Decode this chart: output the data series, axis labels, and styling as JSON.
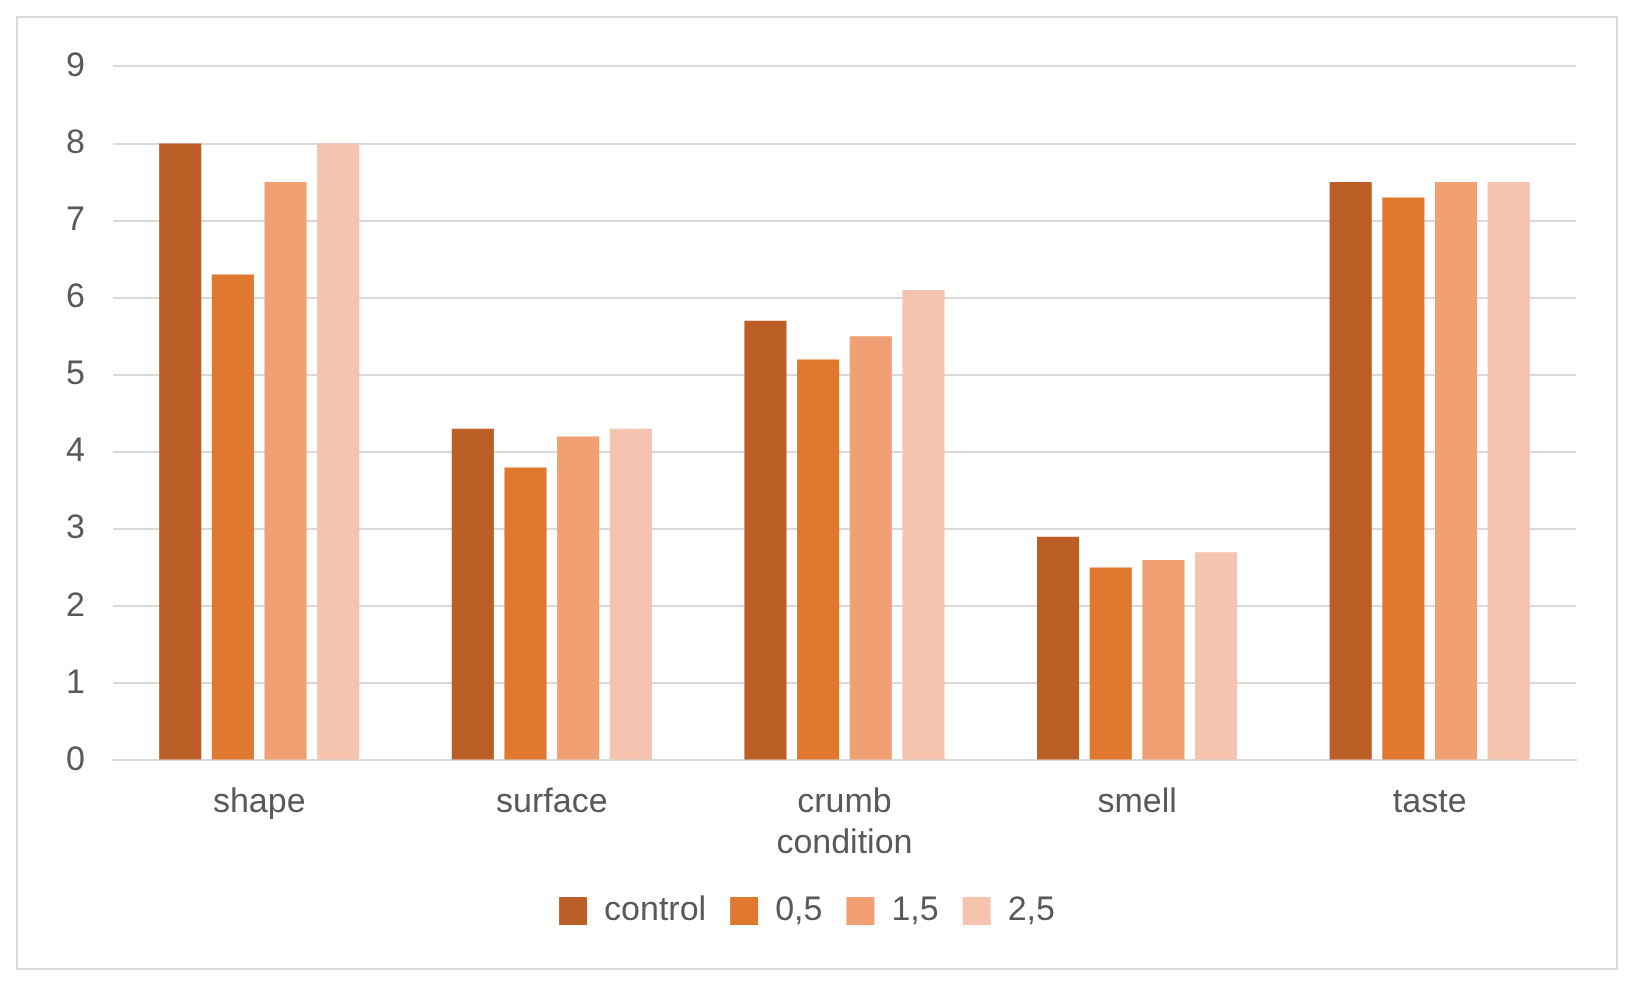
{
  "chart_data": {
    "type": "bar",
    "categories": [
      "shape",
      "surface",
      "crumb condition",
      "smell",
      "taste"
    ],
    "series": [
      {
        "name": "control",
        "color": "#bb5f26",
        "values": [
          8.0,
          4.3,
          5.7,
          2.9,
          7.5
        ]
      },
      {
        "name": "0,5",
        "color": "#e0782f",
        "values": [
          6.3,
          3.8,
          5.2,
          2.5,
          7.3
        ]
      },
      {
        "name": "1,5",
        "color": "#f0a072",
        "values": [
          7.5,
          4.2,
          5.5,
          2.6,
          7.5
        ]
      },
      {
        "name": "2,5",
        "color": "#f5c3ae",
        "values": [
          8.0,
          4.3,
          6.1,
          2.7,
          7.5
        ]
      }
    ],
    "ylim": [
      0,
      9
    ],
    "yticks": [
      0,
      1,
      2,
      3,
      4,
      5,
      6,
      7,
      8,
      9
    ],
    "grid": "y",
    "legend": "bottom"
  }
}
